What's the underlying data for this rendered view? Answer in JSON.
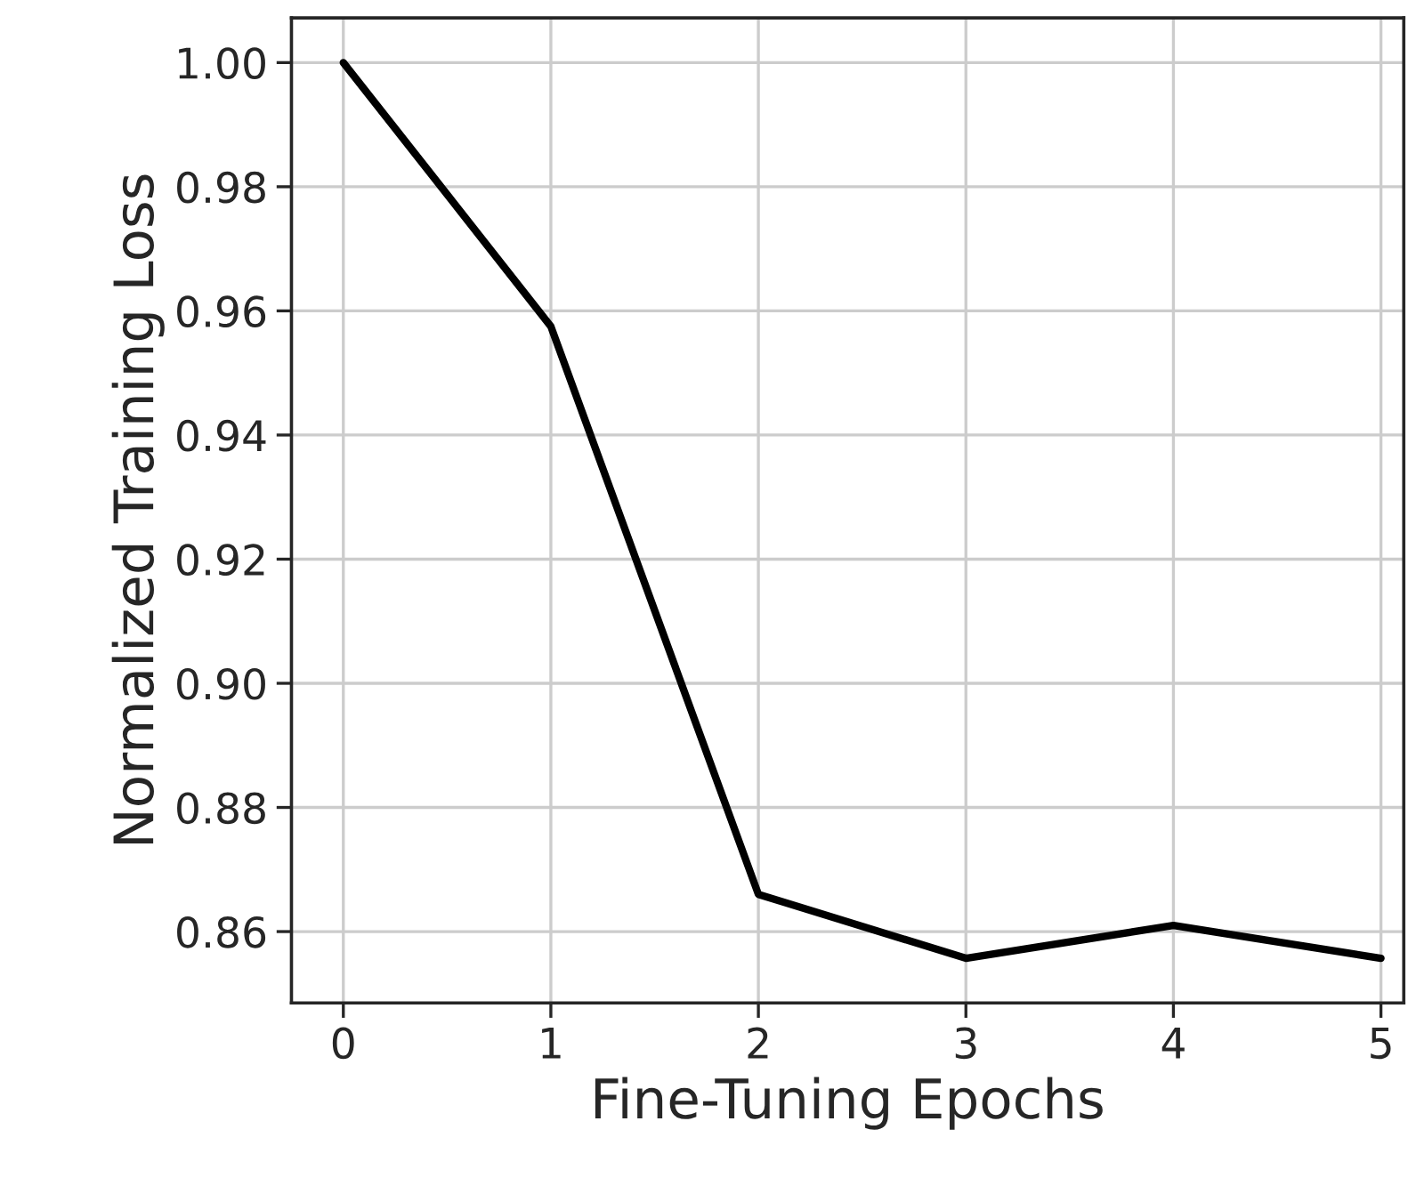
{
  "chart_data": {
    "type": "line",
    "xlabel": "Fine-Tuning Epochs",
    "ylabel": "Normalized Training Loss",
    "x": [
      0,
      1,
      2,
      3,
      4,
      5
    ],
    "series": [
      {
        "color": "#000000",
        "values": [
          1.0,
          0.9575,
          0.866,
          0.8557,
          0.861,
          0.8557
        ]
      }
    ],
    "xlim": [
      -0.25,
      5.11
    ],
    "ylim": [
      0.8485,
      1.0072
    ],
    "xticks": [
      0,
      1,
      2,
      3,
      4,
      5
    ],
    "yticks": [
      {
        "value": 0.86,
        "label": "0.86"
      },
      {
        "value": 0.88,
        "label": "0.88"
      },
      {
        "value": 0.9,
        "label": "0.90"
      },
      {
        "value": 0.92,
        "label": "0.92"
      },
      {
        "value": 0.94,
        "label": "0.94"
      },
      {
        "value": 0.96,
        "label": "0.96"
      },
      {
        "value": 0.98,
        "label": "0.98"
      },
      {
        "value": 1.0,
        "label": "1.00"
      }
    ],
    "grid": true,
    "marker": "none",
    "line_style": "solid"
  }
}
